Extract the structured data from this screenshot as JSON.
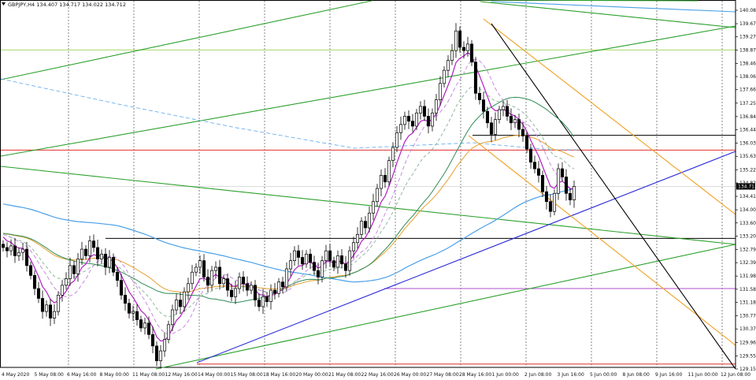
{
  "chart_data": {
    "type": "candlestick",
    "symbol_header": "GBPJPY,H4  134.407 134.717 134.022 134.712",
    "current_price_label": "134.712",
    "current_price": 134.712,
    "ylim": [
      129.15,
      140.2
    ],
    "yticks": [
      "140.080",
      "139.670",
      "139.270",
      "138.870",
      "138.460",
      "138.060",
      "137.660",
      "137.250",
      "136.840",
      "136.440",
      "136.030",
      "135.630",
      "135.220",
      "134.820",
      "134.410",
      "134.000",
      "133.600",
      "133.200",
      "132.790",
      "132.390",
      "131.980",
      "131.580",
      "131.180",
      "130.770",
      "130.370",
      "129.960",
      "129.550",
      "129.150"
    ],
    "xticks": [
      "4 May 2020",
      "5 May 08:00",
      "6 May 16:00",
      "8 May 00:00",
      "11 May 08:00",
      "12 May 16:00",
      "14 May 00:00",
      "15 May 08:00",
      "18 May 16:00",
      "20 May 00:00",
      "21 May 08:00",
      "22 May 16:00",
      "26 May 00:00",
      "27 May 08:00",
      "28 May 16:00",
      "1 Jun 00:00",
      "2 Jun 08:00",
      "3 Jun 16:00",
      "5 Jun 00:00",
      "8 Jun 08:00",
      "9 Jun 16:00",
      "11 Jun 00:00",
      "12 Jun 08:00"
    ],
    "grid": "vertical-dotted",
    "closes": [
      132.85,
      132.75,
      132.9,
      132.6,
      132.7,
      132.8,
      132.3,
      132.0,
      131.6,
      131.3,
      130.9,
      131.1,
      130.7,
      130.9,
      131.4,
      131.7,
      131.9,
      132.3,
      132.05,
      132.5,
      132.8,
      132.6,
      133.05,
      132.85,
      132.5,
      132.65,
      132.25,
      132.55,
      132.1,
      131.85,
      131.4,
      131.15,
      130.85,
      130.9,
      130.65,
      130.4,
      130.55,
      130.2,
      129.85,
      129.4,
      129.7,
      130.05,
      130.5,
      130.95,
      131.25,
      131.05,
      131.5,
      131.75,
      132.1,
      132.25,
      132.45,
      131.95,
      131.7,
      132.15,
      132.25,
      131.75,
      131.9,
      131.55,
      131.35,
      131.6,
      131.95,
      131.75,
      131.55,
      131.7,
      131.25,
      131.05,
      131.35,
      131.2,
      131.55,
      131.45,
      131.8,
      131.65,
      132.2,
      132.45,
      132.75,
      132.55,
      132.35,
      132.65,
      132.4,
      132.15,
      131.95,
      132.45,
      132.75,
      132.45,
      132.25,
      132.6,
      132.35,
      132.15,
      132.75,
      133.0,
      133.25,
      133.65,
      133.45,
      133.9,
      134.25,
      134.65,
      135.05,
      134.85,
      135.5,
      135.9,
      136.35,
      136.6,
      136.85,
      136.7,
      136.55,
      136.95,
      137.15,
      136.85,
      136.55,
      136.95,
      137.35,
      137.85,
      138.25,
      138.55,
      138.85,
      139.45,
      138.95,
      138.85,
      139.05,
      138.5,
      137.55,
      137.35,
      137.0,
      136.65,
      136.3,
      136.75,
      137.05,
      137.15,
      136.85,
      136.65,
      136.75,
      136.45,
      136.25,
      135.85,
      135.45,
      135.25,
      135.05,
      134.55,
      134.25,
      133.95,
      134.5,
      135.25,
      135.0,
      134.5,
      134.3,
      134.712
    ],
    "indicators": [
      "EMA fast (purple)",
      "SMA fast (purple dashed)",
      "MA (light green dashed)",
      "MA (dark green)",
      "MA (orange)",
      "MA (blue)"
    ],
    "drawn_lines": [
      "horizontal levels",
      "trend lines",
      "channels"
    ],
    "colors": {
      "candle_up": "#ffffff",
      "candle_down": "#000000",
      "ema_fast": "#b020c0",
      "sma_fast": "#c58de0",
      "ma_lightgreen": "#8fb89a",
      "ma_darkgreen": "#2e8b57",
      "ma_orange": "#e8a030",
      "ma_blue": "#4aa0e8",
      "hline_red": "#e23030",
      "hline_black": "#000000",
      "hline_purple": "#b04fd0",
      "hline_lime": "#a8d86a",
      "trend_blue": "#2a2ad8",
      "trend_green": "#2ca02c",
      "trend_orange": "#f0a020",
      "trend_black": "#000000",
      "price_label_bg": "#000000"
    }
  }
}
